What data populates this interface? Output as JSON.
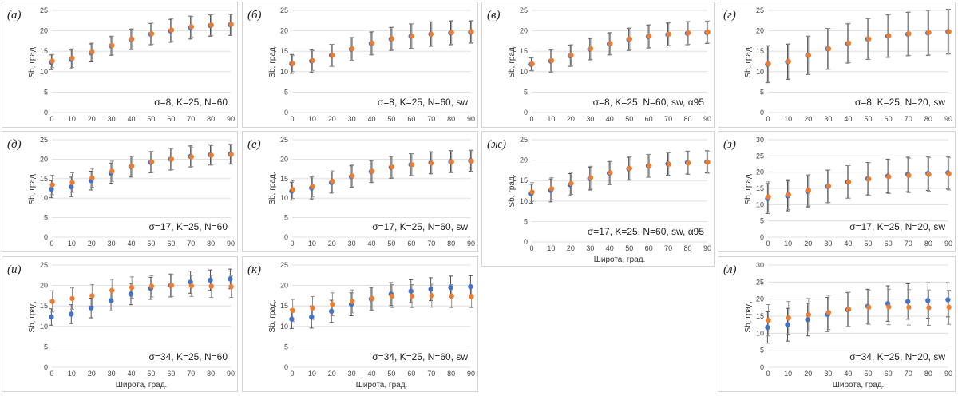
{
  "chart_data": [
    {
      "id": "a",
      "label": "(а)",
      "type": "scatter",
      "annotation": "σ=8, K=25, N=60",
      "ylabel": "Sb, град.",
      "xlabel": "",
      "ylim": [
        0,
        25
      ],
      "yticks": [
        0,
        5,
        10,
        15,
        20,
        25
      ],
      "x": [
        0,
        10,
        20,
        30,
        40,
        50,
        60,
        70,
        80,
        90
      ],
      "series": [
        {
          "color": "#4472c4",
          "values": [
            12.3,
            13.0,
            14.6,
            16.3,
            17.9,
            19.2,
            20.0,
            20.8,
            21.3,
            21.5
          ],
          "errors": [
            1.8,
            2.3,
            2.2,
            2.3,
            2.5,
            2.6,
            2.8,
            2.8,
            2.6,
            2.6
          ]
        },
        {
          "color": "#ed7d31",
          "values": [
            12.6,
            13.3,
            14.8,
            16.4,
            18.0,
            19.3,
            20.2,
            21.0,
            21.4,
            21.6
          ],
          "errors": [
            1.6,
            2.3,
            2.2,
            2.3,
            2.5,
            2.6,
            2.8,
            2.5,
            2.5,
            2.4
          ]
        }
      ]
    },
    {
      "id": "b",
      "label": "(б)",
      "type": "scatter",
      "annotation": "σ=8, K=25, N=60, sw",
      "ylabel": "Sb, град.",
      "xlabel": "",
      "ylim": [
        0,
        25
      ],
      "yticks": [
        0,
        5,
        10,
        15,
        20,
        25
      ],
      "x": [
        0,
        10,
        20,
        30,
        40,
        50,
        60,
        70,
        80,
        90
      ],
      "series": [
        {
          "color": "#4472c4",
          "values": [
            11.9,
            12.6,
            14.0,
            15.5,
            16.9,
            18.0,
            18.7,
            19.2,
            19.5,
            19.7
          ],
          "errors": [
            2.3,
            2.7,
            2.7,
            2.8,
            2.8,
            2.8,
            3.0,
            3.0,
            2.9,
            2.7
          ]
        },
        {
          "color": "#ed7d31",
          "values": [
            12.0,
            12.7,
            14.0,
            15.6,
            17.0,
            18.1,
            18.7,
            19.2,
            19.6,
            19.8
          ],
          "errors": [
            2.0,
            2.4,
            2.7,
            2.8,
            2.8,
            2.8,
            3.0,
            3.0,
            2.9,
            2.7
          ]
        }
      ]
    },
    {
      "id": "v",
      "label": "(в)",
      "type": "scatter",
      "annotation": "σ=8, K=25, N=60, sw, α95",
      "ylabel": "Sb, град.",
      "xlabel": "",
      "ylim": [
        0,
        25
      ],
      "yticks": [
        0,
        5,
        10,
        15,
        20,
        25
      ],
      "x": [
        0,
        10,
        20,
        30,
        40,
        50,
        60,
        70,
        80,
        90
      ],
      "series": [
        {
          "color": "#4472c4",
          "values": [
            11.8,
            12.6,
            13.9,
            15.5,
            16.8,
            17.9,
            18.6,
            19.1,
            19.4,
            19.6
          ],
          "errors": [
            1.6,
            2.7,
            2.6,
            2.6,
            2.7,
            2.7,
            2.8,
            2.8,
            2.8,
            2.7
          ]
        },
        {
          "color": "#ed7d31",
          "values": [
            11.9,
            12.7,
            14.0,
            15.6,
            16.9,
            18.0,
            18.7,
            19.2,
            19.5,
            19.7
          ],
          "errors": [
            1.6,
            2.7,
            2.6,
            2.6,
            2.7,
            2.7,
            2.8,
            2.8,
            2.8,
            2.7
          ]
        }
      ]
    },
    {
      "id": "g",
      "label": "(г)",
      "type": "scatter",
      "annotation": "σ=8, K=25, N=20, sw",
      "ylabel": "Sb, град.",
      "xlabel": "",
      "ylim": [
        0,
        25
      ],
      "yticks": [
        0,
        5,
        10,
        15,
        20,
        25
      ],
      "x": [
        0,
        10,
        20,
        30,
        40,
        50,
        60,
        70,
        80,
        90
      ],
      "series": [
        {
          "color": "#4472c4",
          "values": [
            11.8,
            12.4,
            14.0,
            15.6,
            16.9,
            18.0,
            18.7,
            19.2,
            19.5,
            19.8
          ],
          "errors": [
            4.5,
            4.3,
            4.7,
            5.0,
            4.8,
            5.0,
            5.2,
            5.3,
            5.5,
            5.5
          ]
        },
        {
          "color": "#ed7d31",
          "values": [
            11.9,
            12.5,
            14.0,
            15.6,
            17.0,
            18.0,
            18.8,
            19.3,
            19.6,
            19.8
          ],
          "errors": [
            4.5,
            4.3,
            4.7,
            5.0,
            4.8,
            5.0,
            5.2,
            5.3,
            5.5,
            5.5
          ]
        }
      ]
    },
    {
      "id": "d",
      "label": "(д)",
      "type": "scatter",
      "annotation": "σ=17, K=25, N=60",
      "ylabel": "Sb, град.",
      "xlabel": "",
      "ylim": [
        0,
        25
      ],
      "yticks": [
        0,
        5,
        10,
        15,
        20,
        25
      ],
      "x": [
        0,
        10,
        20,
        30,
        40,
        50,
        60,
        70,
        80,
        90
      ],
      "series": [
        {
          "color": "#4472c4",
          "values": [
            12.3,
            12.9,
            14.5,
            16.4,
            18.1,
            19.2,
            20.0,
            20.7,
            21.1,
            21.3
          ],
          "errors": [
            2.2,
            2.5,
            2.4,
            2.6,
            2.7,
            2.7,
            2.8,
            2.7,
            2.6,
            2.5
          ]
        },
        {
          "color": "#ed7d31",
          "values": [
            13.4,
            14.0,
            15.2,
            16.9,
            18.2,
            19.3,
            20.0,
            20.6,
            21.0,
            21.2
          ],
          "errors": [
            2.5,
            2.5,
            2.4,
            2.6,
            2.5,
            2.7,
            2.7,
            2.5,
            2.5,
            2.5
          ]
        }
      ]
    },
    {
      "id": "e",
      "label": "(е)",
      "type": "scatter",
      "annotation": "σ=17, K=25, N=60, sw",
      "ylabel": "Sb, град.",
      "xlabel": "",
      "ylim": [
        0,
        25
      ],
      "yticks": [
        0,
        5,
        10,
        15,
        20,
        25
      ],
      "x": [
        0,
        10,
        20,
        30,
        40,
        50,
        60,
        70,
        80,
        90
      ],
      "series": [
        {
          "color": "#4472c4",
          "values": [
            11.8,
            12.6,
            14.0,
            15.5,
            16.8,
            17.9,
            18.6,
            19.1,
            19.4,
            19.6
          ],
          "errors": [
            2.3,
            2.8,
            2.7,
            2.8,
            2.8,
            2.8,
            2.8,
            2.8,
            2.8,
            2.7
          ]
        },
        {
          "color": "#ed7d31",
          "values": [
            12.2,
            13.0,
            14.3,
            15.7,
            16.9,
            18.0,
            18.6,
            19.0,
            19.3,
            19.5
          ],
          "errors": [
            2.3,
            2.7,
            2.7,
            2.8,
            2.8,
            2.8,
            2.8,
            2.8,
            2.8,
            2.7
          ]
        }
      ]
    },
    {
      "id": "zh",
      "label": "(ж)",
      "type": "scatter",
      "annotation": "σ=17, K=25, N=60, sw, α95",
      "ylabel": "Sb, град.",
      "xlabel": "Широта, град.",
      "ylim": [
        0,
        25
      ],
      "yticks": [
        0,
        5,
        10,
        15,
        20,
        25
      ],
      "x": [
        0,
        10,
        20,
        30,
        40,
        50,
        60,
        70,
        80,
        90
      ],
      "series": [
        {
          "color": "#4472c4",
          "values": [
            11.8,
            12.6,
            14.0,
            15.5,
            16.8,
            17.9,
            18.6,
            19.1,
            19.4,
            19.6
          ],
          "errors": [
            2.3,
            2.8,
            2.7,
            2.8,
            2.8,
            2.8,
            2.8,
            2.8,
            2.8,
            2.7
          ]
        },
        {
          "color": "#ed7d31",
          "values": [
            12.2,
            13.0,
            14.3,
            15.7,
            16.9,
            18.0,
            18.6,
            19.0,
            19.3,
            19.5
          ],
          "errors": [
            2.3,
            2.7,
            2.7,
            2.8,
            2.8,
            2.8,
            2.8,
            2.8,
            2.8,
            2.7
          ]
        }
      ]
    },
    {
      "id": "z",
      "label": "(з)",
      "type": "scatter",
      "annotation": "σ=17, K=25, N=20, sw",
      "ylabel": "Sb, град.",
      "xlabel": "",
      "ylim": [
        0,
        30
      ],
      "yticks": [
        0,
        5,
        10,
        15,
        20,
        25,
        30
      ],
      "x": [
        0,
        10,
        20,
        30,
        40,
        50,
        60,
        70,
        80,
        90
      ],
      "series": [
        {
          "color": "#4472c4",
          "values": [
            11.9,
            12.7,
            14.1,
            15.6,
            17.0,
            18.0,
            18.8,
            19.3,
            19.6,
            19.8
          ],
          "errors": [
            4.6,
            4.6,
            4.8,
            5.0,
            5.0,
            5.0,
            5.2,
            5.3,
            5.2,
            5.0
          ]
        },
        {
          "color": "#ed7d31",
          "values": [
            12.4,
            13.1,
            14.4,
            15.7,
            17.0,
            17.9,
            18.6,
            19.0,
            19.3,
            19.5
          ],
          "errors": [
            4.6,
            4.6,
            4.8,
            5.0,
            5.0,
            5.0,
            5.2,
            5.3,
            5.2,
            5.0
          ]
        }
      ]
    },
    {
      "id": "i",
      "label": "(и)",
      "type": "scatter",
      "annotation": "σ=34, K=25, N=60",
      "ylabel": "Sb, град.",
      "xlabel": "Широта, град.",
      "ylim": [
        0,
        25
      ],
      "yticks": [
        0,
        5,
        10,
        15,
        20,
        25
      ],
      "x": [
        0,
        10,
        20,
        30,
        40,
        50,
        60,
        70,
        80,
        90
      ],
      "series": [
        {
          "color": "#4472c4",
          "values": [
            12.3,
            13.0,
            14.5,
            16.3,
            17.9,
            19.3,
            20.0,
            20.8,
            21.3,
            21.6
          ],
          "errors": [
            2.0,
            2.3,
            2.4,
            2.5,
            2.6,
            2.7,
            2.8,
            2.7,
            2.5,
            2.4
          ]
        },
        {
          "color": "#ed7d31",
          "values": [
            16.1,
            16.8,
            17.5,
            18.8,
            19.5,
            19.8,
            20.0,
            19.9,
            19.8,
            19.7
          ],
          "errors": [
            2.6,
            2.6,
            2.7,
            2.7,
            2.6,
            2.6,
            2.7,
            2.6,
            2.7,
            2.6
          ]
        }
      ]
    },
    {
      "id": "k",
      "label": "(к)",
      "type": "scatter",
      "annotation": "σ=34, K=25, N=60, sw",
      "ylabel": "Sb, град.",
      "xlabel": "Широта, град.",
      "ylim": [
        0,
        25
      ],
      "yticks": [
        0,
        5,
        10,
        15,
        20,
        25
      ],
      "x": [
        0,
        10,
        20,
        30,
        40,
        50,
        60,
        70,
        80,
        90
      ],
      "series": [
        {
          "color": "#4472c4",
          "values": [
            11.8,
            12.3,
            13.7,
            15.4,
            16.7,
            17.9,
            18.6,
            19.1,
            19.5,
            19.7
          ],
          "errors": [
            2.3,
            2.7,
            2.7,
            2.8,
            2.8,
            2.8,
            2.8,
            2.8,
            2.8,
            2.7
          ]
        },
        {
          "color": "#ed7d31",
          "values": [
            13.9,
            14.5,
            15.4,
            16.1,
            16.8,
            17.4,
            17.4,
            17.5,
            17.4,
            17.3
          ],
          "errors": [
            2.7,
            2.8,
            2.8,
            2.8,
            2.8,
            2.8,
            2.8,
            2.8,
            2.8,
            2.7
          ]
        }
      ]
    },
    {
      "id": "l",
      "label": "(л)",
      "type": "scatter",
      "annotation": "σ=34, K=25, N=20, sw",
      "ylabel": "Sb, град.",
      "xlabel": "Широта, град.",
      "ylim": [
        0,
        30
      ],
      "yticks": [
        0,
        5,
        10,
        15,
        20,
        25,
        30
      ],
      "x": [
        0,
        10,
        20,
        30,
        40,
        50,
        60,
        70,
        80,
        90
      ],
      "series": [
        {
          "color": "#4472c4",
          "values": [
            11.7,
            12.5,
            14.0,
            15.5,
            16.9,
            17.9,
            18.7,
            19.3,
            19.6,
            19.8
          ],
          "errors": [
            4.6,
            4.8,
            4.8,
            5.0,
            5.0,
            5.0,
            5.2,
            5.2,
            5.2,
            5.0
          ]
        },
        {
          "color": "#ed7d31",
          "values": [
            13.8,
            14.5,
            15.4,
            16.1,
            17.0,
            17.6,
            17.7,
            17.6,
            17.5,
            17.6
          ],
          "errors": [
            4.6,
            4.8,
            4.8,
            5.0,
            5.0,
            5.0,
            5.2,
            5.2,
            5.2,
            5.0
          ]
        }
      ]
    }
  ]
}
